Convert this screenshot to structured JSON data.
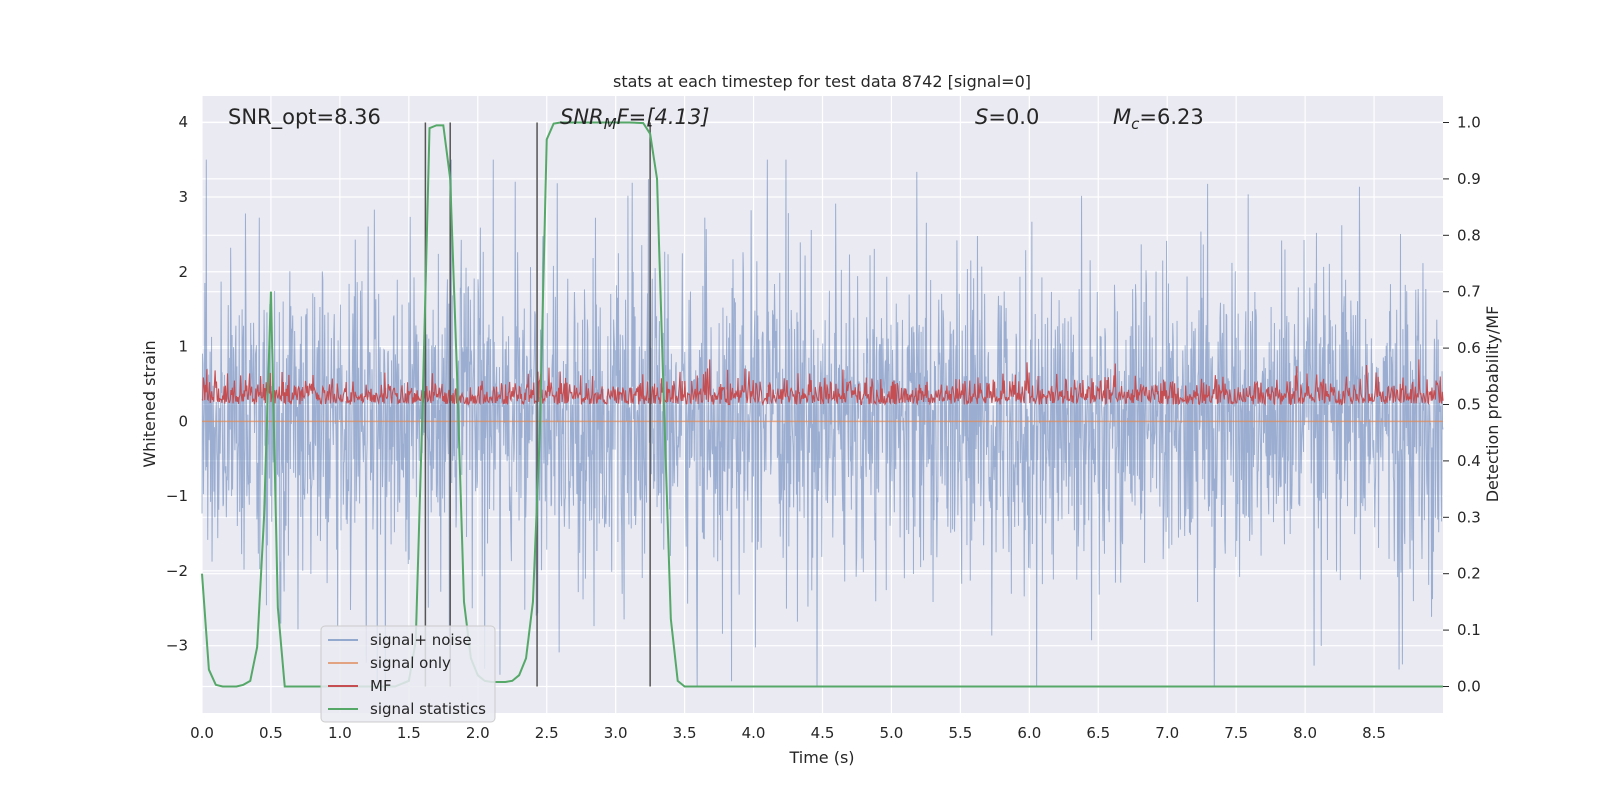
{
  "chart_data": {
    "type": "line",
    "title": "stats at each timestep for test data 8742 [signal=0]",
    "xlabel": "Time (s)",
    "ylabel": "Whitened strain",
    "ylabel_right": "Detection probability/MF",
    "xlim": [
      0,
      9.0
    ],
    "ylim": [
      -3.9,
      4.35
    ],
    "ylim_right": [
      -0.047,
      1.047
    ],
    "x_ticks": [
      "0.0",
      "0.5",
      "1.0",
      "1.5",
      "2.0",
      "2.5",
      "3.0",
      "3.5",
      "4.0",
      "4.5",
      "5.0",
      "5.5",
      "6.0",
      "6.5",
      "7.0",
      "7.5",
      "8.0",
      "8.5"
    ],
    "y_ticks": [
      "4",
      "3",
      "2",
      "1",
      "0",
      "−1",
      "−2",
      "−3"
    ],
    "y_ticks_right": [
      "1.0",
      "0.9",
      "0.8",
      "0.7",
      "0.6",
      "0.5",
      "0.4",
      "0.3",
      "0.2",
      "0.1",
      "0.0"
    ],
    "grid": true,
    "legend_position": "lower-left",
    "annotations": {
      "snr_opt": "SNR_opt=8.36",
      "snr_mf_base": "SNR",
      "snr_mf_sub": "M",
      "snr_mf_rest": "F=[4.13]",
      "s_italic": "S",
      "s_rest": "=0.0",
      "mc_base": "M",
      "mc_sub": "c",
      "mc_rest": "=6.23"
    },
    "vertical_lines_x": [
      1.62,
      1.8,
      2.43,
      3.25
    ],
    "series": [
      {
        "name": "signal+ noise",
        "color": "#4c72b0",
        "kind": "noise",
        "amplitude_range": [
          -3.55,
          3.5
        ]
      },
      {
        "name": "signal only",
        "color": "#dd8452",
        "kind": "flat",
        "value": 0.0
      },
      {
        "name": "MF",
        "color": "#c44e52",
        "kind": "mf",
        "axis": "right",
        "range": [
          0.5,
          0.58
        ]
      },
      {
        "name": "signal statistics",
        "color": "#55a868",
        "axis": "right",
        "x": [
          0.0,
          0.05,
          0.1,
          0.15,
          0.2,
          0.25,
          0.3,
          0.35,
          0.4,
          0.45,
          0.5,
          0.55,
          0.6,
          0.65,
          0.7,
          0.75,
          0.8,
          0.85,
          0.9,
          1.0,
          1.1,
          1.2,
          1.3,
          1.4,
          1.5,
          1.55,
          1.6,
          1.65,
          1.7,
          1.75,
          1.8,
          1.85,
          1.9,
          1.95,
          2.0,
          2.05,
          2.1,
          2.15,
          2.2,
          2.25,
          2.3,
          2.35,
          2.4,
          2.45,
          2.5,
          2.55,
          2.6,
          2.7,
          2.8,
          2.9,
          3.0,
          3.1,
          3.2,
          3.25,
          3.3,
          3.35,
          3.4,
          3.45,
          3.5,
          3.6,
          4.0,
          5.0,
          6.0,
          7.0,
          8.0,
          9.0
        ],
        "y": [
          0.2,
          0.03,
          0.003,
          0.0,
          0.0,
          0.0,
          0.003,
          0.01,
          0.07,
          0.3,
          0.7,
          0.14,
          0.0,
          0.0,
          0.0,
          0.0,
          0.0,
          0.0,
          0.0,
          0.0,
          0.0,
          0.0,
          0.0,
          0.0,
          0.01,
          0.08,
          0.5,
          0.99,
          0.995,
          0.995,
          0.9,
          0.55,
          0.15,
          0.05,
          0.02,
          0.01,
          0.008,
          0.008,
          0.008,
          0.01,
          0.02,
          0.05,
          0.15,
          0.45,
          0.97,
          0.998,
          1.0,
          1.0,
          1.0,
          1.0,
          1.0,
          1.0,
          0.999,
          0.98,
          0.9,
          0.5,
          0.12,
          0.01,
          0.0,
          0.0,
          0.0,
          0.0,
          0.0,
          0.0,
          0.0,
          0.0
        ]
      }
    ]
  }
}
